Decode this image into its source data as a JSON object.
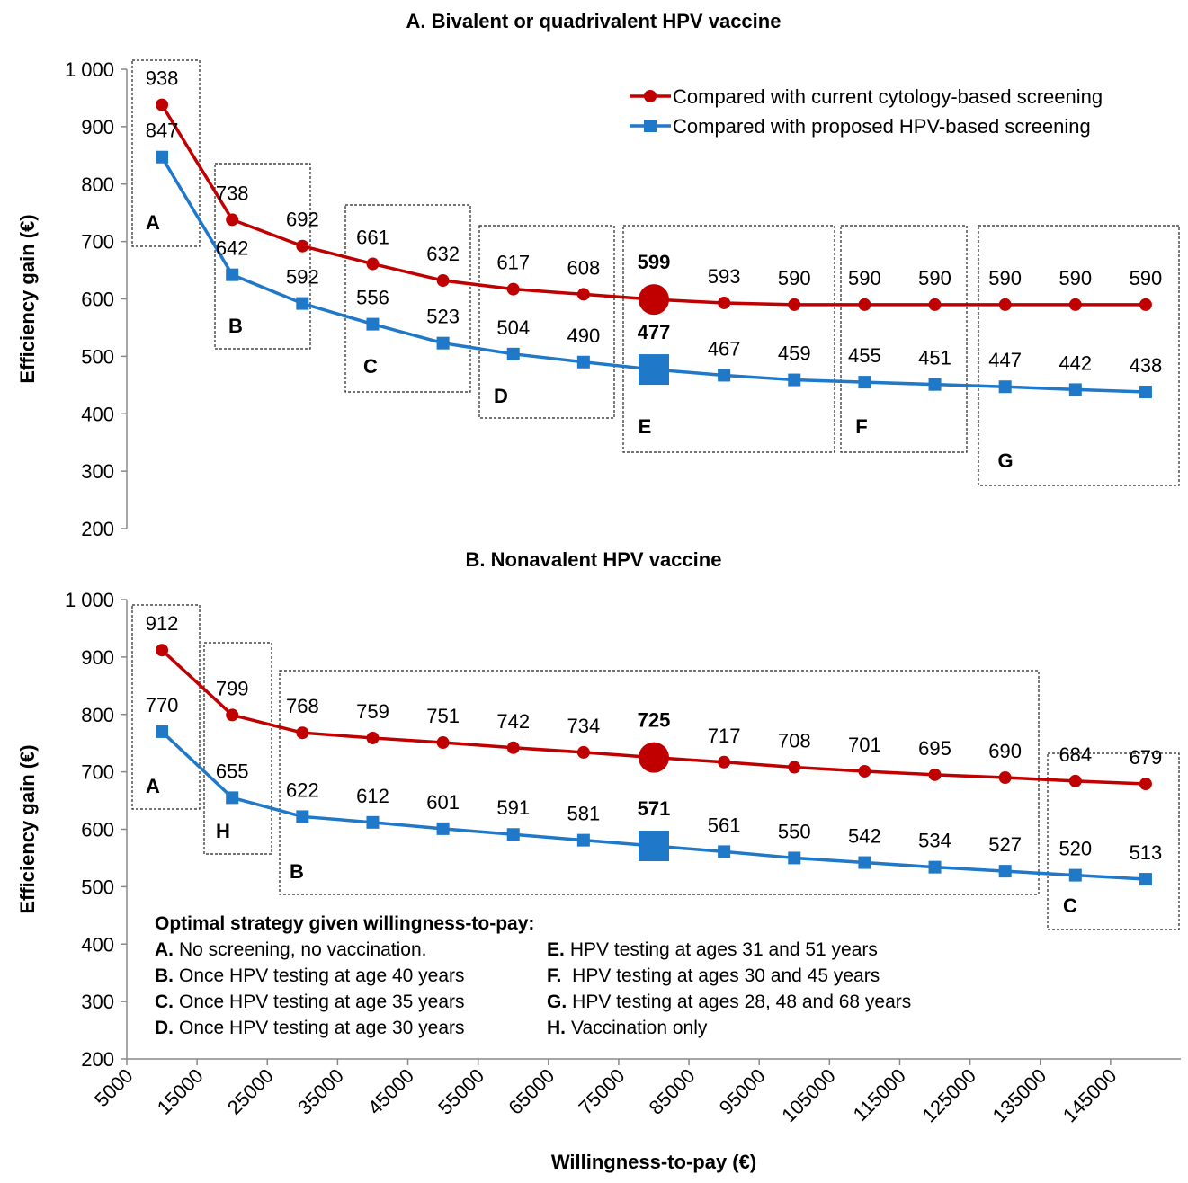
{
  "chart_data": [
    {
      "type": "line",
      "title": "A. Bivalent or quadrivalent HPV vaccine",
      "ylabel": "Efficiency gain (€)",
      "x": [
        10000,
        20000,
        30000,
        40000,
        50000,
        60000,
        70000,
        80000,
        90000,
        100000,
        110000,
        120000,
        130000,
        140000,
        150000
      ],
      "xlim": [
        5000,
        155000
      ],
      "ylim": [
        200,
        1000
      ],
      "yticks": [
        200,
        300,
        400,
        500,
        600,
        700,
        800,
        900,
        {
          "value": 1000,
          "label": "1 000"
        }
      ],
      "legend_position": "upper right",
      "highlight_x": 80000,
      "series": [
        {
          "name": "Compared with current cytology-based screening",
          "color": "#c00000",
          "marker": "circle",
          "values": [
            938,
            738,
            692,
            661,
            632,
            617,
            608,
            599,
            593,
            590,
            590,
            590,
            590,
            590,
            590
          ]
        },
        {
          "name": "Compared with proposed HPV-based screening",
          "color": "#1f78c8",
          "marker": "square",
          "values": [
            847,
            642,
            592,
            556,
            523,
            504,
            490,
            477,
            467,
            459,
            455,
            451,
            447,
            442,
            438
          ]
        }
      ],
      "regions": [
        "A",
        "B",
        "C",
        "D",
        "E",
        "F",
        "G"
      ]
    },
    {
      "type": "line",
      "title": "B. Nonavalent HPV vaccine",
      "ylabel": "Efficiency gain (€)",
      "xlabel": "Willingness-to-pay (€)",
      "x": [
        10000,
        20000,
        30000,
        40000,
        50000,
        60000,
        70000,
        80000,
        90000,
        100000,
        110000,
        120000,
        130000,
        140000,
        150000
      ],
      "xlim": [
        5000,
        155000
      ],
      "xticks": [
        5000,
        15000,
        25000,
        35000,
        45000,
        55000,
        65000,
        75000,
        85000,
        95000,
        105000,
        115000,
        125000,
        135000,
        145000
      ],
      "ylim": [
        200,
        1000
      ],
      "yticks": [
        200,
        300,
        400,
        500,
        600,
        700,
        800,
        900,
        {
          "value": 1000,
          "label": "1 000"
        }
      ],
      "highlight_x": 80000,
      "series": [
        {
          "color": "#c00000",
          "marker": "circle",
          "values": [
            912,
            799,
            768,
            759,
            751,
            742,
            734,
            725,
            717,
            708,
            701,
            695,
            690,
            684,
            679
          ]
        },
        {
          "color": "#1f78c8",
          "marker": "square",
          "values": [
            770,
            655,
            622,
            612,
            601,
            591,
            581,
            571,
            561,
            550,
            542,
            534,
            527,
            520,
            513
          ]
        }
      ],
      "regions": [
        "A",
        "H",
        "B",
        "C"
      ]
    }
  ],
  "strategy_key": {
    "heading": "Optimal strategy given willingness-to-pay:",
    "items": [
      {
        "key": "A.",
        "text": "No screening, no vaccination."
      },
      {
        "key": "B.",
        "text": "Once HPV testing at age 40 years"
      },
      {
        "key": "C.",
        "text": "Once HPV testing at age 35 years"
      },
      {
        "key": "D.",
        "text": "Once HPV testing at age 30 years"
      },
      {
        "key": "E.",
        "text": "HPV testing at ages 31 and 51 years"
      },
      {
        "key": "F.",
        "text": " HPV testing at ages 30 and 45 years"
      },
      {
        "key": "G.",
        "text": "HPV testing at ages 28, 48 and 68 years"
      },
      {
        "key": "H.",
        "text": "Vaccination only"
      }
    ]
  }
}
